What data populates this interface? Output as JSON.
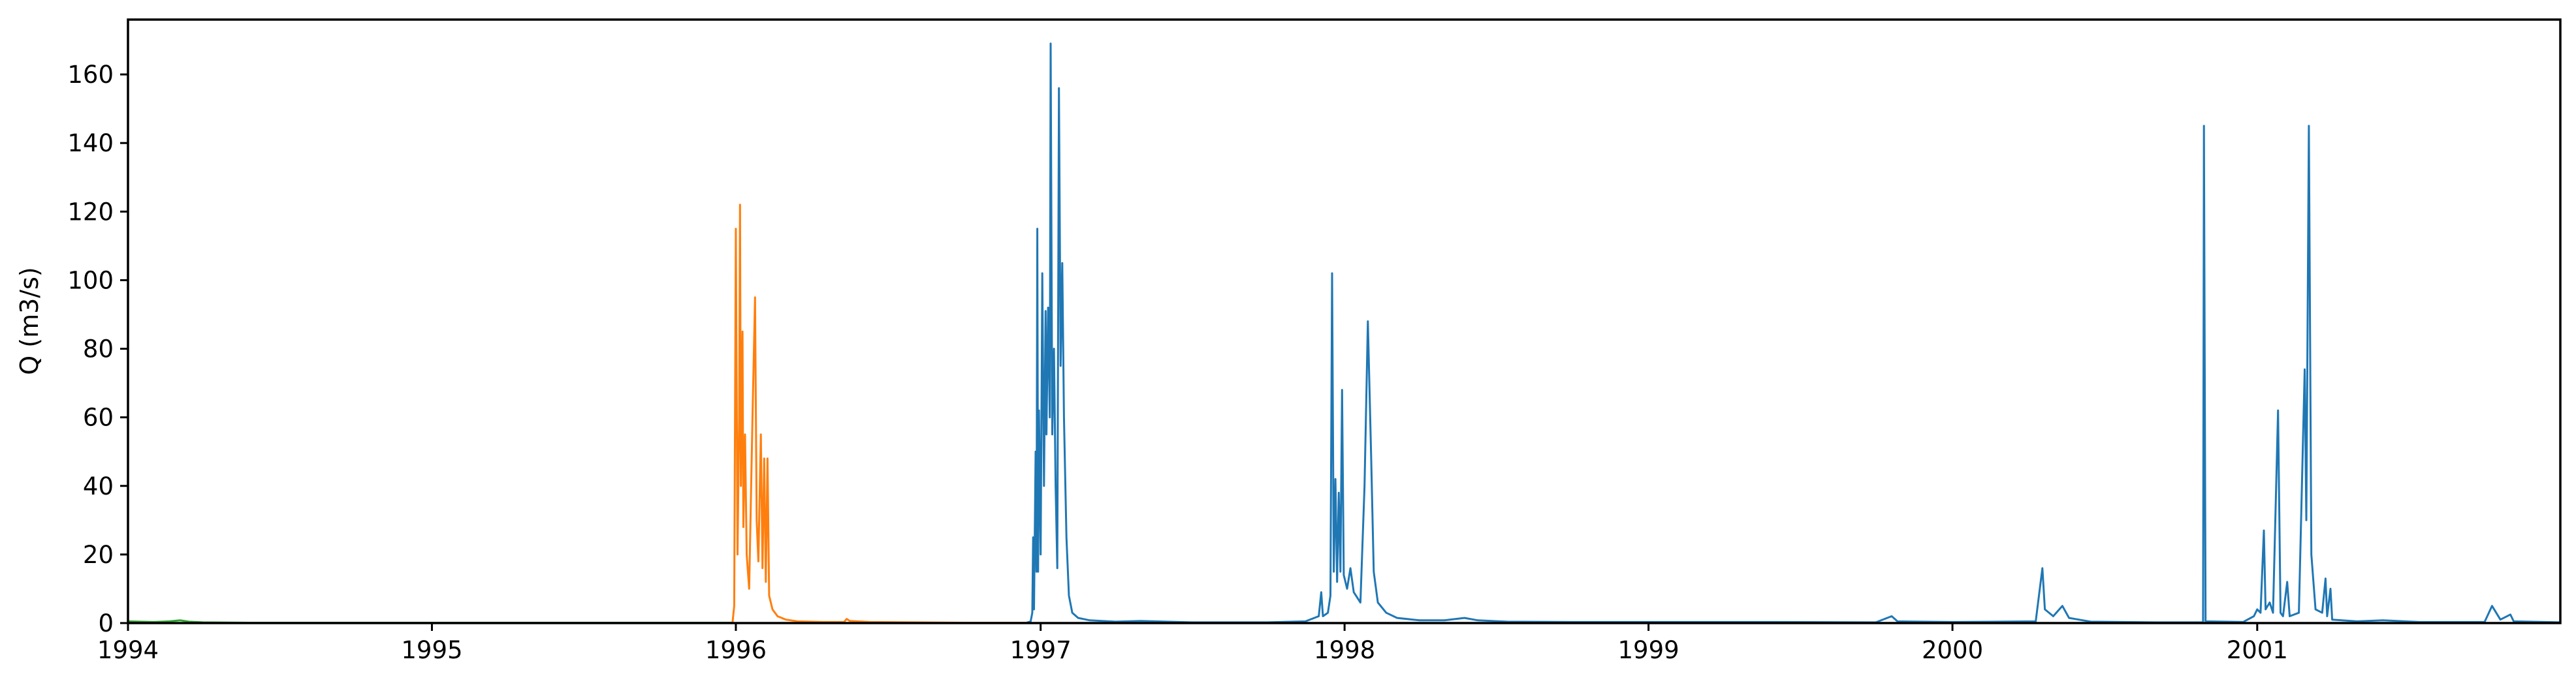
{
  "chart_data": {
    "type": "line",
    "title": "",
    "xlabel": "",
    "ylabel": "Q (m3/s)",
    "xlim": [
      "1994-01-01",
      "2001-12-31"
    ],
    "ylim": [
      0,
      176
    ],
    "xticks": [
      {
        "date": "1994-01-01",
        "label": "1994"
      },
      {
        "date": "1995-01-01",
        "label": "1995"
      },
      {
        "date": "1996-01-01",
        "label": "1996"
      },
      {
        "date": "1997-01-01",
        "label": "1997"
      },
      {
        "date": "1998-01-01",
        "label": "1998"
      },
      {
        "date": "1999-01-01",
        "label": "1999"
      },
      {
        "date": "2000-01-01",
        "label": "2000"
      },
      {
        "date": "2001-01-01",
        "label": "2001"
      }
    ],
    "yticks": [
      0,
      20,
      40,
      60,
      80,
      100,
      120,
      140,
      160
    ],
    "grid": false,
    "legend": "none",
    "series": [
      {
        "color": "#2ca02c",
        "points": [
          [
            "1994-01-01",
            0.5
          ],
          [
            "1994-01-15",
            0.4
          ],
          [
            "1994-02-01",
            0.3
          ],
          [
            "1994-02-20",
            0.5
          ],
          [
            "1994-03-05",
            0.8
          ],
          [
            "1994-03-15",
            0.4
          ],
          [
            "1994-04-01",
            0.2
          ],
          [
            "1994-06-01",
            0.1
          ],
          [
            "1994-09-01",
            0.1
          ],
          [
            "1994-12-31",
            0.1
          ],
          [
            "1995-06-01",
            0.1
          ],
          [
            "1995-12-28",
            0.1
          ]
        ]
      },
      {
        "color": "#ff7f0e",
        "points": [
          [
            "1995-12-28",
            0.1
          ],
          [
            "1995-12-30",
            5
          ],
          [
            "1996-01-01",
            115
          ],
          [
            "1996-01-03",
            20
          ],
          [
            "1996-01-05",
            60
          ],
          [
            "1996-01-06",
            122
          ],
          [
            "1996-01-07",
            40
          ],
          [
            "1996-01-09",
            85
          ],
          [
            "1996-01-10",
            28
          ],
          [
            "1996-01-12",
            55
          ],
          [
            "1996-01-14",
            20
          ],
          [
            "1996-01-17",
            10
          ],
          [
            "1996-01-21",
            60
          ],
          [
            "1996-01-24",
            95
          ],
          [
            "1996-01-26",
            30
          ],
          [
            "1996-01-28",
            18
          ],
          [
            "1996-01-31",
            55
          ],
          [
            "1996-02-02",
            16
          ],
          [
            "1996-02-04",
            48
          ],
          [
            "1996-02-06",
            12
          ],
          [
            "1996-02-08",
            48
          ],
          [
            "1996-02-10",
            8
          ],
          [
            "1996-02-14",
            4
          ],
          [
            "1996-02-20",
            2
          ],
          [
            "1996-03-01",
            1
          ],
          [
            "1996-03-15",
            0.5
          ],
          [
            "1996-04-15",
            0.3
          ],
          [
            "1996-05-10",
            0.3
          ],
          [
            "1996-05-13",
            1.2
          ],
          [
            "1996-05-17",
            0.6
          ],
          [
            "1996-06-10",
            0.3
          ],
          [
            "1996-08-01",
            0.2
          ],
          [
            "1996-10-01",
            0.1
          ],
          [
            "1996-12-15",
            0.1
          ]
        ]
      },
      {
        "color": "#1f77b4",
        "points": [
          [
            "1996-12-15",
            0.1
          ],
          [
            "1996-12-20",
            0.5
          ],
          [
            "1996-12-22",
            3
          ],
          [
            "1996-12-23",
            25
          ],
          [
            "1996-12-24",
            4
          ],
          [
            "1996-12-26",
            50
          ],
          [
            "1996-12-27",
            15
          ],
          [
            "1996-12-28",
            115
          ],
          [
            "1996-12-29",
            15
          ],
          [
            "1996-12-30",
            62
          ],
          [
            "1997-01-01",
            20
          ],
          [
            "1997-01-03",
            102
          ],
          [
            "1997-01-05",
            40
          ],
          [
            "1997-01-07",
            91
          ],
          [
            "1997-01-08",
            55
          ],
          [
            "1997-01-10",
            92
          ],
          [
            "1997-01-12",
            60
          ],
          [
            "1997-01-13",
            169
          ],
          [
            "1997-01-15",
            55
          ],
          [
            "1997-01-17",
            80
          ],
          [
            "1997-01-19",
            40
          ],
          [
            "1997-01-21",
            16
          ],
          [
            "1997-01-23",
            156
          ],
          [
            "1997-01-25",
            75
          ],
          [
            "1997-01-27",
            105
          ],
          [
            "1997-01-29",
            60
          ],
          [
            "1997-02-01",
            25
          ],
          [
            "1997-02-04",
            8
          ],
          [
            "1997-02-08",
            3
          ],
          [
            "1997-02-15",
            1.5
          ],
          [
            "1997-03-01",
            0.8
          ],
          [
            "1997-04-01",
            0.4
          ],
          [
            "1997-05-01",
            0.6
          ],
          [
            "1997-07-01",
            0.2
          ],
          [
            "1997-10-01",
            0.2
          ],
          [
            "1997-11-15",
            0.5
          ],
          [
            "1997-12-01",
            2
          ],
          [
            "1997-12-04",
            9
          ],
          [
            "1997-12-06",
            2
          ],
          [
            "1997-12-12",
            3
          ],
          [
            "1997-12-15",
            8
          ],
          [
            "1997-12-17",
            102
          ],
          [
            "1997-12-19",
            15
          ],
          [
            "1997-12-21",
            42
          ],
          [
            "1997-12-23",
            12
          ],
          [
            "1997-12-25",
            38
          ],
          [
            "1997-12-27",
            15
          ],
          [
            "1997-12-29",
            68
          ],
          [
            "1997-12-31",
            14
          ],
          [
            "1998-01-04",
            10
          ],
          [
            "1998-01-08",
            16
          ],
          [
            "1998-01-12",
            9
          ],
          [
            "1998-01-20",
            6
          ],
          [
            "1998-01-25",
            40
          ],
          [
            "1998-01-29",
            88
          ],
          [
            "1998-02-02",
            48
          ],
          [
            "1998-02-05",
            15
          ],
          [
            "1998-02-10",
            6
          ],
          [
            "1998-02-20",
            3
          ],
          [
            "1998-03-05",
            1.5
          ],
          [
            "1998-04-01",
            0.8
          ],
          [
            "1998-05-01",
            0.8
          ],
          [
            "1998-05-25",
            1.5
          ],
          [
            "1998-06-10",
            0.8
          ],
          [
            "1998-07-15",
            0.4
          ],
          [
            "1998-10-01",
            0.3
          ],
          [
            "1999-06-01",
            0.3
          ],
          [
            "1999-10-01",
            0.2
          ],
          [
            "1999-10-20",
            2
          ],
          [
            "1999-10-27",
            0.5
          ],
          [
            "2000-01-01",
            0.3
          ],
          [
            "2000-04-10",
            0.5
          ],
          [
            "2000-04-18",
            16
          ],
          [
            "2000-04-21",
            4
          ],
          [
            "2000-05-01",
            2
          ],
          [
            "2000-05-12",
            5
          ],
          [
            "2000-05-20",
            1.5
          ],
          [
            "2000-06-15",
            0.4
          ],
          [
            "2000-09-01",
            0.2
          ],
          [
            "2000-10-28",
            0.2
          ],
          [
            "2000-10-29",
            145
          ],
          [
            "2000-10-31",
            0.5
          ],
          [
            "2000-12-15",
            0.3
          ],
          [
            "2000-12-28",
            2
          ],
          [
            "2001-01-01",
            4
          ],
          [
            "2001-01-05",
            3
          ],
          [
            "2001-01-09",
            27
          ],
          [
            "2001-01-11",
            4
          ],
          [
            "2001-01-16",
            6
          ],
          [
            "2001-01-20",
            3
          ],
          [
            "2001-01-26",
            62
          ],
          [
            "2001-01-29",
            3
          ],
          [
            "2001-02-01",
            2
          ],
          [
            "2001-02-06",
            12
          ],
          [
            "2001-02-09",
            2
          ],
          [
            "2001-02-20",
            3
          ],
          [
            "2001-02-27",
            74
          ],
          [
            "2001-03-01",
            30
          ],
          [
            "2001-03-04",
            145
          ],
          [
            "2001-03-07",
            20
          ],
          [
            "2001-03-12",
            4
          ],
          [
            "2001-03-20",
            3
          ],
          [
            "2001-03-24",
            13
          ],
          [
            "2001-03-26",
            2
          ],
          [
            "2001-03-30",
            10
          ],
          [
            "2001-04-01",
            1
          ],
          [
            "2001-05-01",
            0.5
          ],
          [
            "2001-06-01",
            0.8
          ],
          [
            "2001-07-15",
            0.3
          ],
          [
            "2001-10-01",
            0.3
          ],
          [
            "2001-10-10",
            5
          ],
          [
            "2001-10-20",
            1
          ],
          [
            "2001-11-01",
            2.5
          ],
          [
            "2001-11-05",
            0.5
          ],
          [
            "2001-12-31",
            0.2
          ]
        ]
      }
    ]
  }
}
